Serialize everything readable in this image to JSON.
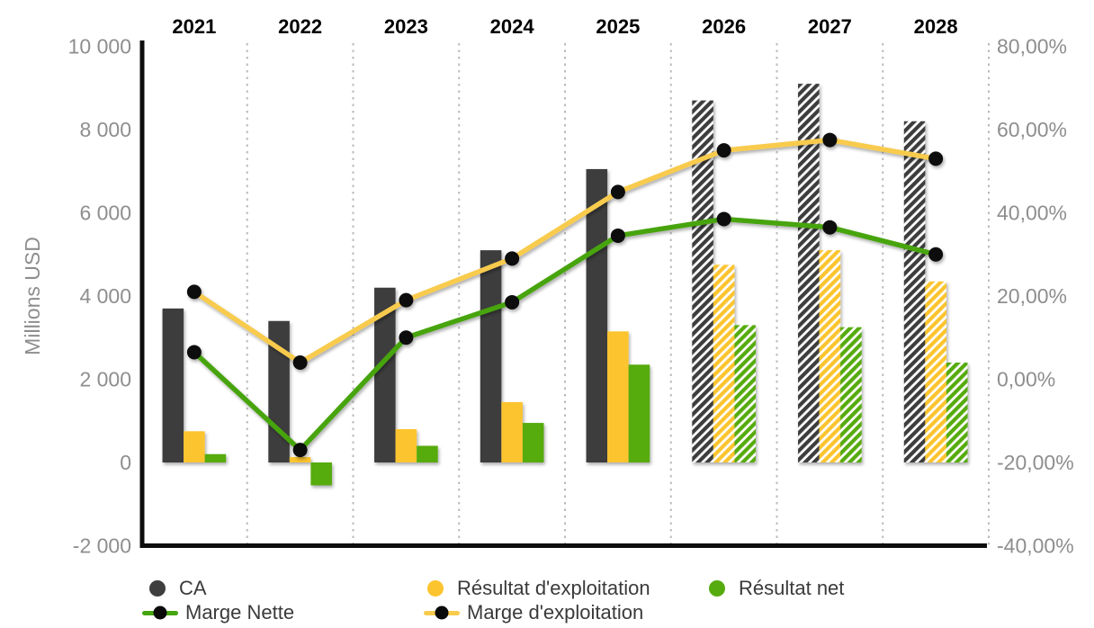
{
  "chart_data": {
    "type": "combo-bar-line",
    "categories": [
      "2021",
      "2022",
      "2023",
      "2024",
      "2025",
      "2026",
      "2027",
      "2028"
    ],
    "forecast_start_index": 5,
    "bar_series": [
      {
        "name": "CA",
        "color": "#3e3e3e",
        "values": [
          3700,
          3400,
          4200,
          5100,
          7050,
          8700,
          9100,
          8200
        ]
      },
      {
        "name": "Résultat d'exploitation",
        "color": "#fcc42f",
        "values": [
          750,
          130,
          800,
          1450,
          3150,
          4750,
          5100,
          4350
        ]
      },
      {
        "name": "Résultat net",
        "color": "#56ab0f",
        "values": [
          200,
          -550,
          400,
          950,
          2350,
          3300,
          3250,
          2400
        ]
      }
    ],
    "line_series": [
      {
        "name": "Marge Nette",
        "color": "#46a410",
        "dot_color": "#0a0a0a",
        "values_percent": [
          6.5,
          -17,
          10,
          18.5,
          34.5,
          38.5,
          36.5,
          30
        ]
      },
      {
        "name": "Marge d'exploitation",
        "color": "#f8cb4d",
        "dot_color": "#0a0a0a",
        "values_percent": [
          21,
          4,
          19,
          29,
          45,
          55,
          57.5,
          53
        ]
      }
    ],
    "ylabel": "Millions USD",
    "left_axis": {
      "range": [
        -2000,
        10000
      ],
      "ticks": [
        {
          "value": 10000,
          "label": "10 000"
        },
        {
          "value": 8000,
          "label": "8 000"
        },
        {
          "value": 6000,
          "label": "6 000"
        },
        {
          "value": 4000,
          "label": "4 000"
        },
        {
          "value": 2000,
          "label": "2 000"
        },
        {
          "value": 0,
          "label": "0"
        },
        {
          "value": -2000,
          "label": "-2 000"
        }
      ]
    },
    "right_axis": {
      "range": [
        -40,
        80
      ],
      "ticks": [
        {
          "value": 80,
          "label": "80,00%"
        },
        {
          "value": 60,
          "label": "60,00%"
        },
        {
          "value": 40,
          "label": "40,00%"
        },
        {
          "value": 20,
          "label": "20,00%"
        },
        {
          "value": 0,
          "label": "0,00%"
        },
        {
          "value": -20,
          "label": "-20,00%"
        },
        {
          "value": -40,
          "label": "-40,00%"
        }
      ]
    },
    "grid": "vertical-dotted",
    "legend_position": "bottom"
  },
  "legend": {
    "items": [
      {
        "label": "CA",
        "marker": "circle",
        "color": "#3e3e3e"
      },
      {
        "label": "Résultat d'exploitation",
        "marker": "circle",
        "color": "#fcc42f"
      },
      {
        "label": "Résultat net",
        "marker": "circle",
        "color": "#56ab0f"
      },
      {
        "label": "Marge Nette",
        "marker": "line-dot",
        "color": "#46a410"
      },
      {
        "label": "Marge d'exploitation",
        "marker": "line-dot",
        "color": "#f8cb4d"
      }
    ]
  },
  "colors": {
    "background": "#ffffff",
    "axis": "#0d0d0d",
    "gridline": "#bbbbbb",
    "tick_text": "#8e8e8e",
    "legend_text": "#3a3a3a"
  }
}
